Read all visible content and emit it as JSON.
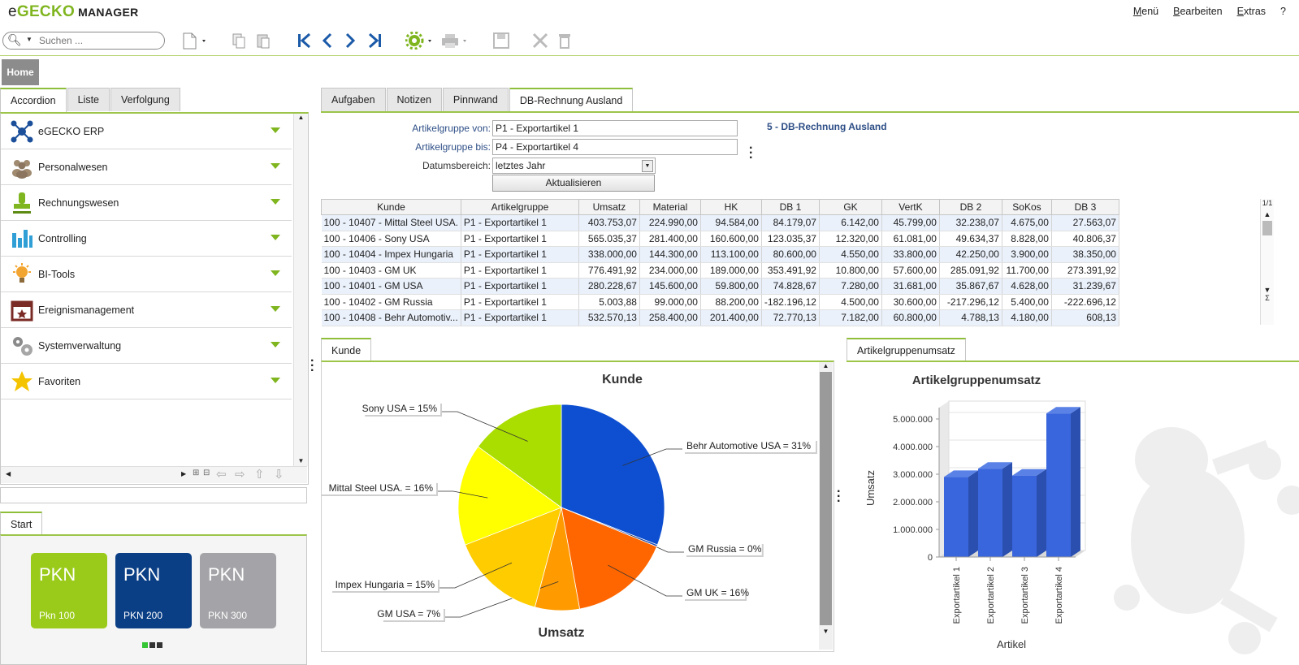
{
  "app": {
    "logo_e": "e",
    "logo_gecko": "GECKO",
    "logo_manager": "MANAGER"
  },
  "topmenu": [
    "Menü",
    "Bearbeiten",
    "Extras",
    "?"
  ],
  "search": {
    "placeholder": "Suchen ..."
  },
  "home_label": "Home",
  "left_tabs": [
    "Accordion",
    "Liste",
    "Verfolgung"
  ],
  "accordion": [
    {
      "label": "eGECKO ERP",
      "icon": "network-icon"
    },
    {
      "label": "Personalwesen",
      "icon": "people-icon"
    },
    {
      "label": "Rechnungswesen",
      "icon": "stamp-icon"
    },
    {
      "label": "Controlling",
      "icon": "bar-chart-icon"
    },
    {
      "label": "BI-Tools",
      "icon": "lightbulb-icon"
    },
    {
      "label": "Ereignismanagement",
      "icon": "calendar-icon"
    },
    {
      "label": "Systemverwaltung",
      "icon": "gears-icon"
    },
    {
      "label": "Favoriten",
      "icon": "star-icon"
    }
  ],
  "start": {
    "tab": "Start",
    "tiles": [
      {
        "big": "PKN",
        "small": "Pkn 100",
        "color": "#9acb1a"
      },
      {
        "big": "PKN",
        "small": "PKN 200",
        "color": "#0a3e85"
      },
      {
        "big": "PKN",
        "small": "PKN 300",
        "color": "#a4a4a8"
      }
    ]
  },
  "right_tabs": [
    "Aufgaben",
    "Notizen",
    "Pinnwand",
    "DB-Rechnung Ausland"
  ],
  "form": {
    "von_label": "Artikelgruppe von:",
    "von_value": "P1 - Exportartikel 1",
    "bis_label": "Artikelgruppe bis:",
    "bis_value": "P4 - Exportartikel 4",
    "datum_label": "Datumsbereich:",
    "datum_value": "letztes Jahr",
    "refresh_label": "Aktualisieren",
    "report_title": "5 - DB-Rechnung Ausland"
  },
  "grid": {
    "page": "1/1",
    "sigma": "Σ",
    "columns": [
      "Kunde",
      "Artikelgruppe",
      "Umsatz",
      "Material",
      "HK",
      "DB 1",
      "GK",
      "VertK",
      "DB 2",
      "SoKos",
      "DB 3"
    ],
    "rows": [
      [
        "100 - 10407 - Mittal Steel USA.",
        "P1 - Exportartikel 1",
        "403.753,07",
        "224.990,00",
        "94.584,00",
        "84.179,07",
        "6.142,00",
        "45.799,00",
        "32.238,07",
        "4.675,00",
        "27.563,07"
      ],
      [
        "100 - 10406 - Sony USA",
        "P1 - Exportartikel 1",
        "565.035,37",
        "281.400,00",
        "160.600,00",
        "123.035,37",
        "12.320,00",
        "61.081,00",
        "49.634,37",
        "8.828,00",
        "40.806,37"
      ],
      [
        "100 - 10404 - Impex Hungaria",
        "P1 - Exportartikel 1",
        "338.000,00",
        "144.300,00",
        "113.100,00",
        "80.600,00",
        "4.550,00",
        "33.800,00",
        "42.250,00",
        "3.900,00",
        "38.350,00"
      ],
      [
        "100 - 10403 - GM UK",
        "P1 - Exportartikel 1",
        "776.491,92",
        "234.000,00",
        "189.000,00",
        "353.491,92",
        "10.800,00",
        "57.600,00",
        "285.091,92",
        "11.700,00",
        "273.391,92"
      ],
      [
        "100 - 10401 - GM USA",
        "P1 - Exportartikel 1",
        "280.228,67",
        "145.600,00",
        "59.800,00",
        "74.828,67",
        "7.280,00",
        "31.681,00",
        "35.867,67",
        "4.628,00",
        "31.239,67"
      ],
      [
        "100 - 10402 - GM Russia",
        "P1 - Exportartikel 1",
        "5.003,88",
        "99.000,00",
        "88.200,00",
        "-182.196,12",
        "4.500,00",
        "30.600,00",
        "-217.296,12",
        "5.400,00",
        "-222.696,12"
      ],
      [
        "100 - 10408 - Behr Automotiv...",
        "P1 - Exportartikel 1",
        "532.570,13",
        "258.400,00",
        "201.400,00",
        "72.770,13",
        "7.182,00",
        "60.800,00",
        "4.788,13",
        "4.180,00",
        "608,13"
      ]
    ]
  },
  "kunde_tab": "Kunde",
  "ag_tab": "Artikelgruppenumsatz",
  "chart_data": [
    {
      "type": "pie",
      "title": "Kunde",
      "xlabel": "Umsatz",
      "slices": [
        {
          "label": "Behr Automotive USA = 31%",
          "value": 31,
          "color": "#0d4fd0"
        },
        {
          "label": "GM Russia = 0%",
          "value": 0.3,
          "color": "#1245b8"
        },
        {
          "label": "GM UK = 16%",
          "value": 16,
          "color": "#ff6600"
        },
        {
          "label": "GM USA = 7%",
          "value": 7,
          "color": "#ff9a00"
        },
        {
          "label": "Impex Hungaria = 15%",
          "value": 15,
          "color": "#ffcc00"
        },
        {
          "label": "Mittal Steel USA. = 16%",
          "value": 16,
          "color": "#ffff00"
        },
        {
          "label": "Sony USA = 15%",
          "value": 15,
          "color": "#aadd00"
        }
      ]
    },
    {
      "type": "bar",
      "title": "Artikelgruppenumsatz",
      "xlabel": "Artikel",
      "ylabel": "Umsatz",
      "categories": [
        "Exportartikel 1",
        "Exportartikel 2",
        "Exportartikel 3",
        "Exportartikel 4"
      ],
      "values": [
        2900000,
        3200000,
        2950000,
        5200000
      ],
      "yticks": [
        "0",
        "1.000.000",
        "2.000.000",
        "3.000.000",
        "4.000.000",
        "5.000.000"
      ],
      "ylim": [
        0,
        5000000
      ]
    }
  ]
}
